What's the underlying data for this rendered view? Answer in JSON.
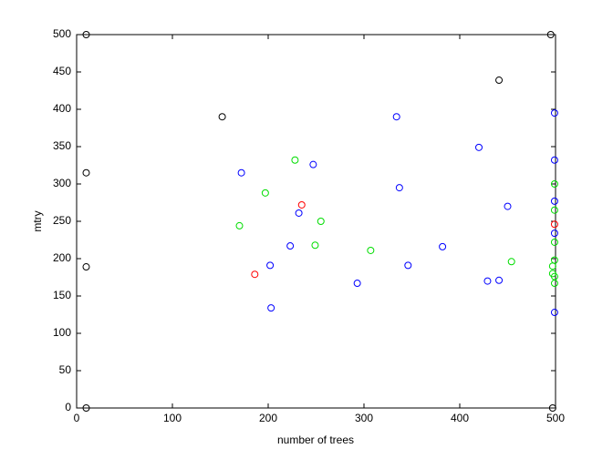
{
  "chart_data": {
    "type": "scatter",
    "x_label": "number of trees",
    "y_label": "mtry",
    "xlim": [
      0,
      500
    ],
    "ylim": [
      0,
      500
    ],
    "xticks": [
      0,
      100,
      200,
      300,
      400,
      500
    ],
    "yticks": [
      0,
      50,
      100,
      150,
      200,
      250,
      300,
      350,
      400,
      450,
      500
    ],
    "grid": false,
    "series": [
      {
        "color": "#000000",
        "x": [
          10,
          10,
          10,
          10,
          152,
          441,
          495,
          497
        ],
        "values": [
          500,
          315,
          189,
          0,
          390,
          439,
          500,
          0
        ]
      },
      {
        "color": "#0000ff",
        "x": [
          172,
          247,
          232,
          223,
          202,
          203,
          334,
          337,
          346,
          293,
          382,
          420,
          450,
          429,
          441,
          499,
          499,
          499,
          499,
          499
        ],
        "values": [
          315,
          326,
          261,
          217,
          191,
          134,
          390,
          295,
          191,
          167,
          216,
          349,
          270,
          170,
          171,
          395,
          332,
          277,
          234,
          128
        ]
      },
      {
        "color": "#00dd00",
        "x": [
          228,
          197,
          170,
          255,
          249,
          307,
          454,
          499,
          499,
          499,
          499,
          497,
          497,
          499,
          499
        ],
        "values": [
          332,
          288,
          244,
          250,
          218,
          211,
          196,
          300,
          265,
          222,
          198,
          190,
          180,
          176,
          167
        ]
      },
      {
        "color": "#ff0000",
        "x": [
          235,
          186,
          499
        ],
        "values": [
          272,
          179,
          246
        ]
      }
    ]
  }
}
